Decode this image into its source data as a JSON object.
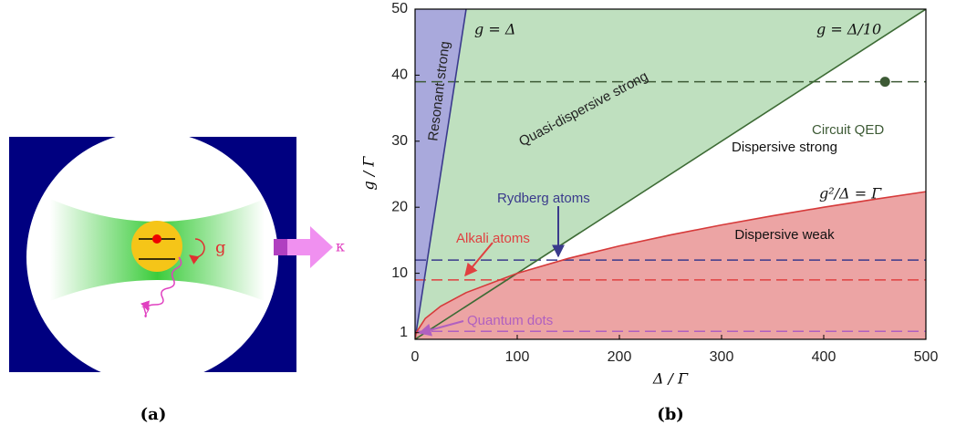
{
  "panel_a": {
    "label": "(a)",
    "coupling": "g",
    "cavity_loss": "κ",
    "spontaneous_emission": "γ"
  },
  "chart_data": {
    "type": "regime-map",
    "label": "(b)",
    "xlabel": "Δ / Γ",
    "ylabel": "g / Γ",
    "xlim": [
      0,
      500
    ],
    "ylim": [
      0,
      50
    ],
    "xticks": [
      0,
      100,
      200,
      300,
      400,
      500
    ],
    "yticks": [
      1,
      10,
      20,
      30,
      40,
      50
    ],
    "regions": [
      {
        "label": "Resonant strong",
        "color": "#a9a9dc"
      },
      {
        "label": "Quasi-dispersive strong",
        "color": "#bfe0bf"
      },
      {
        "label": "Dispersive strong",
        "color": "#ffffff"
      },
      {
        "label": "Dispersive weak",
        "color": "#eca4a4"
      }
    ],
    "curves": [
      {
        "label": "g = Δ",
        "color": "#3a3a8c",
        "x": [
          0,
          50
        ],
        "y": [
          0,
          50
        ]
      },
      {
        "label": "g = Δ/10",
        "color": "#3d6b35",
        "x": [
          0,
          500
        ],
        "y": [
          0,
          50
        ]
      },
      {
        "label": "g²/Δ = Γ",
        "color": "#d63a3a",
        "x": [
          0,
          1,
          10,
          25,
          50,
          100,
          150,
          200,
          250,
          300,
          350,
          400,
          450,
          500
        ],
        "y": [
          0,
          1,
          3.16,
          5,
          7.07,
          10,
          12.25,
          14.14,
          15.81,
          17.32,
          18.71,
          20,
          21.21,
          22.36
        ]
      }
    ],
    "levels": [
      {
        "label": "Circuit QED",
        "color": "#3d5a35",
        "value": 39
      },
      {
        "label": "Rydberg atoms",
        "color": "#3a3a8c",
        "value": 12
      },
      {
        "label": "Alkali atoms",
        "color": "#e04040",
        "value": 9
      },
      {
        "label": "Quantum dots",
        "color": "#b060c0",
        "value": 1.2
      }
    ],
    "marker": {
      "x": 460,
      "y": 39,
      "color": "#3d5a35"
    }
  }
}
